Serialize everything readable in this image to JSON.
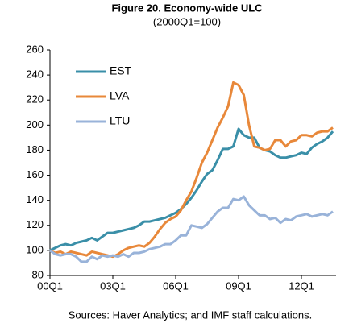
{
  "chart_data": {
    "type": "line",
    "title": "Figure 20. Economy-wide ULC",
    "subtitle": "(2000Q1=100)",
    "note": "Sources: Haver Analytics; and IMF staff calculations.",
    "categories": [
      "00Q1",
      null,
      null,
      null,
      null,
      null,
      null,
      null,
      null,
      null,
      null,
      null,
      "03Q1",
      null,
      null,
      null,
      null,
      null,
      null,
      null,
      null,
      null,
      null,
      null,
      "06Q1",
      null,
      null,
      null,
      null,
      null,
      null,
      null,
      null,
      null,
      null,
      null,
      "09Q1",
      null,
      null,
      null,
      null,
      null,
      null,
      null,
      null,
      null,
      null,
      null,
      "12Q1",
      null,
      null,
      null,
      null,
      null,
      null
    ],
    "ylim": [
      80,
      260
    ],
    "yticks": [
      80,
      100,
      120,
      140,
      160,
      180,
      200,
      220,
      240,
      260
    ],
    "grid": false,
    "legend": "upper-left",
    "series": [
      {
        "name": "EST",
        "color": "#3a8fa8",
        "values": [
          100,
          102,
          104,
          105,
          104,
          106,
          107,
          108,
          110,
          108,
          111,
          114,
          114,
          115,
          116,
          117,
          118,
          120,
          123,
          123,
          124,
          125,
          126,
          128,
          130,
          133,
          137,
          142,
          148,
          155,
          161,
          164,
          172,
          181,
          181,
          183,
          197,
          192,
          190,
          190,
          182,
          180,
          179,
          176,
          174,
          174,
          175,
          176,
          178,
          177,
          182,
          185,
          187,
          190,
          195
        ]
      },
      {
        "name": "LVA",
        "color": "#e8883a",
        "values": [
          100,
          98,
          99,
          97,
          99,
          98,
          97,
          96,
          99,
          98,
          97,
          96,
          95,
          97,
          100,
          102,
          103,
          104,
          103,
          106,
          111,
          117,
          122,
          125,
          127,
          132,
          140,
          147,
          158,
          170,
          178,
          188,
          198,
          206,
          215,
          234,
          232,
          224,
          200,
          183,
          182,
          180,
          181,
          188,
          188,
          183,
          187,
          188,
          192,
          192,
          191,
          194,
          195,
          195,
          198
        ]
      },
      {
        "name": "LTU",
        "color": "#99b3d9",
        "values": [
          100,
          97,
          96,
          97,
          97,
          95,
          91,
          91,
          95,
          93,
          96,
          95,
          96,
          95,
          97,
          95,
          98,
          98,
          99,
          101,
          102,
          103,
          105,
          105,
          108,
          112,
          112,
          120,
          119,
          118,
          121,
          126,
          131,
          134,
          134,
          141,
          140,
          143,
          136,
          132,
          128,
          128,
          125,
          126,
          122,
          125,
          124,
          127,
          128,
          129,
          127,
          128,
          129,
          128,
          131
        ]
      }
    ]
  }
}
